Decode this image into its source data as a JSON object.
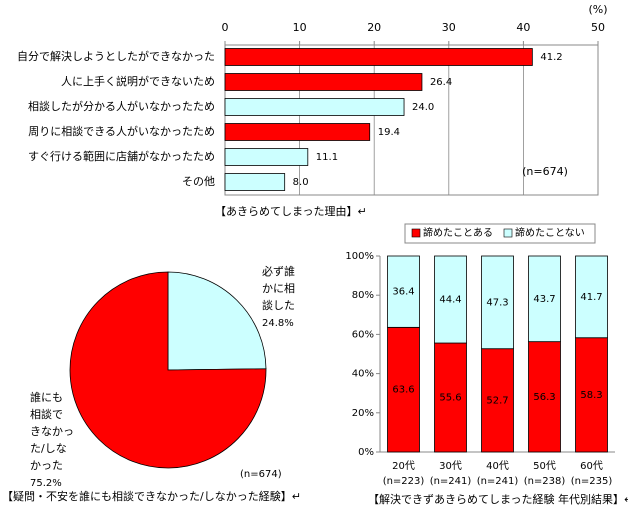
{
  "chart_data": [
    {
      "type": "hbar",
      "categories": [
        "自分で解決しようとしたができなかった",
        "人に上手く説明ができないため",
        "相談したが分かる人がいなかったため",
        "周りに相談できる人がいなかったため",
        "すぐ行ける範囲に店舗がなかったため",
        "その他"
      ],
      "values": [
        41.2,
        26.4,
        24.0,
        19.4,
        11.1,
        8.0
      ],
      "value_labels": [
        "41.2",
        "26.4",
        "24.0",
        "19.4",
        "11.1",
        "8.0"
      ],
      "colors": [
        "#ff0000",
        "#ff0000",
        "#ccffff",
        "#ff0000",
        "#ccffff",
        "#ccffff"
      ],
      "xlim": [
        0,
        50
      ],
      "xticks": [
        0,
        10,
        20,
        30,
        40,
        50
      ],
      "x_label": "(%)",
      "grid": true,
      "annotation": "(n=674)",
      "caption": "【あきらめてしまった理由】↵"
    },
    {
      "type": "pie",
      "label_lines": [
        [
          "必ず誰",
          "かに相",
          "談した"
        ],
        [
          "誰にも",
          "相談で",
          "きなかっ",
          "た/しな",
          "かった"
        ]
      ],
      "values": [
        24.8,
        75.2
      ],
      "value_labels": [
        "24.8%",
        "75.2%"
      ],
      "colors": [
        "#ccffff",
        "#ff0000"
      ],
      "annotation": "(n=674)",
      "caption": "【疑問・不安を誰にも相談できなかった/しなかった経験】↵"
    },
    {
      "type": "stacked_bar",
      "categories": [
        "20代",
        "30代",
        "40代",
        "50代",
        "60代"
      ],
      "category_notes": [
        "(n=223)",
        "(n=241)",
        "(n=241)",
        "(n=238)",
        "(n=235)"
      ],
      "series": [
        {
          "name": "諦めたことある",
          "color": "#ff0000",
          "values": [
            63.6,
            55.6,
            52.7,
            56.3,
            58.3
          ]
        },
        {
          "name": "諦めたことない",
          "color": "#ccffff",
          "values": [
            36.4,
            44.4,
            47.3,
            43.7,
            41.7
          ]
        }
      ],
      "ylim": [
        0,
        100
      ],
      "yticks": [
        {
          "value": 0,
          "label": "0%"
        },
        {
          "value": 20,
          "label": "20%"
        },
        {
          "value": 40,
          "label": "40%"
        },
        {
          "value": 60,
          "label": "60%"
        },
        {
          "value": 80,
          "label": "80%"
        },
        {
          "value": 100,
          "label": "100%"
        }
      ],
      "caption": "【解決できずあきらめてしまった経験 年代別結果】↵"
    }
  ]
}
